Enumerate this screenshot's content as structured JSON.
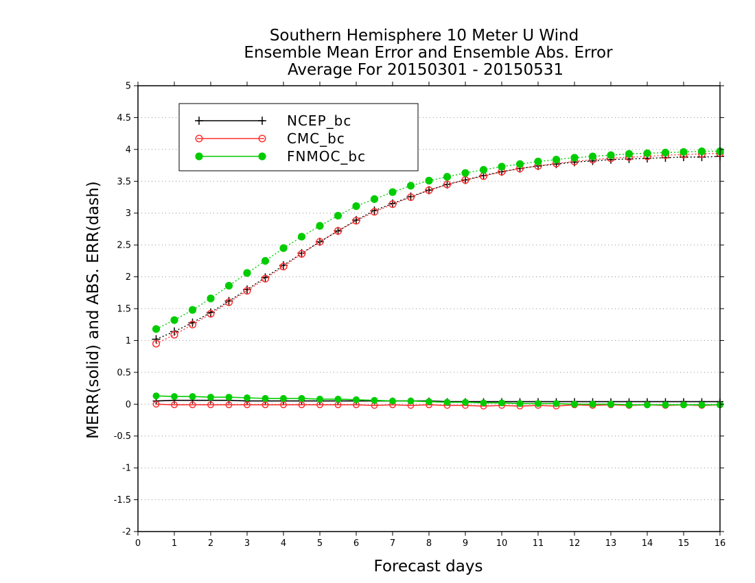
{
  "chart_data": {
    "type": "line",
    "title": [
      "Southern Hemisphere 10 Meter U Wind",
      "Ensemble Mean Error and Ensemble Abs. Error",
      "Average For 20150301 - 20150531"
    ],
    "xlabel": "Forecast days",
    "ylabel": "MERR(solid) and ABS. ERR(dash)",
    "xlim": [
      0,
      16
    ],
    "ylim": [
      -2,
      5
    ],
    "xticks": [
      0,
      1,
      2,
      3,
      4,
      5,
      6,
      7,
      8,
      9,
      10,
      11,
      12,
      13,
      14,
      15,
      16
    ],
    "yticks": [
      -2,
      -1.5,
      -1,
      -0.5,
      0,
      0.5,
      1,
      1.5,
      2,
      2.5,
      3,
      3.5,
      4,
      4.5,
      5
    ],
    "ytick_labels": [
      "-2",
      "-1.5",
      "-1",
      "-0.5",
      "0",
      "0.5",
      "1",
      "1.5",
      "2",
      "2.5",
      "3",
      "3.5",
      "4",
      "4.5",
      "5"
    ],
    "grid": "horizontal dotted",
    "legend_position": "top-left",
    "x": [
      0.5,
      1,
      1.5,
      2,
      2.5,
      3,
      3.5,
      4,
      4.5,
      5,
      5.5,
      6,
      6.5,
      7,
      7.5,
      8,
      8.5,
      9,
      9.5,
      10,
      10.5,
      11,
      11.5,
      12,
      12.5,
      13,
      13.5,
      14,
      14.5,
      15,
      15.5,
      16
    ],
    "series": [
      {
        "name": "NCEP_bc",
        "color": "#000000",
        "marker": "plus",
        "mean_error": [
          0.05,
          0.06,
          0.06,
          0.06,
          0.06,
          0.05,
          0.05,
          0.05,
          0.05,
          0.05,
          0.05,
          0.05,
          0.05,
          0.05,
          0.05,
          0.05,
          0.04,
          0.04,
          0.04,
          0.04,
          0.04,
          0.04,
          0.04,
          0.04,
          0.04,
          0.04,
          0.04,
          0.04,
          0.04,
          0.04,
          0.04,
          0.04
        ],
        "abs_error": [
          1.02,
          1.14,
          1.28,
          1.44,
          1.62,
          1.8,
          1.99,
          2.18,
          2.37,
          2.55,
          2.72,
          2.89,
          3.04,
          3.15,
          3.26,
          3.36,
          3.45,
          3.52,
          3.59,
          3.65,
          3.7,
          3.74,
          3.77,
          3.8,
          3.82,
          3.84,
          3.85,
          3.86,
          3.87,
          3.88,
          3.88,
          3.89
        ]
      },
      {
        "name": "CMC_bc",
        "color": "#ff3030",
        "marker": "open-circle",
        "mean_error": [
          0.0,
          -0.01,
          -0.01,
          -0.01,
          -0.01,
          -0.01,
          -0.01,
          -0.01,
          -0.01,
          -0.01,
          -0.01,
          -0.01,
          -0.02,
          -0.01,
          -0.02,
          -0.01,
          -0.02,
          -0.02,
          -0.03,
          -0.02,
          -0.03,
          -0.02,
          -0.03,
          -0.01,
          -0.02,
          -0.01,
          -0.02,
          -0.01,
          -0.02,
          -0.01,
          -0.02,
          -0.01
        ],
        "abs_error": [
          0.95,
          1.09,
          1.25,
          1.42,
          1.6,
          1.78,
          1.97,
          2.16,
          2.36,
          2.55,
          2.72,
          2.88,
          3.02,
          3.14,
          3.25,
          3.36,
          3.45,
          3.52,
          3.58,
          3.65,
          3.7,
          3.74,
          3.78,
          3.81,
          3.84,
          3.86,
          3.88,
          3.89,
          3.91,
          3.92,
          3.93,
          3.94
        ]
      },
      {
        "name": "FNMOC_bc",
        "color": "#00cc00",
        "marker": "filled-circle",
        "mean_error": [
          0.13,
          0.12,
          0.12,
          0.11,
          0.11,
          0.1,
          0.09,
          0.09,
          0.09,
          0.08,
          0.08,
          0.07,
          0.06,
          0.05,
          0.05,
          0.04,
          0.03,
          0.03,
          0.02,
          0.02,
          0.01,
          0.01,
          0.01,
          0.0,
          0.0,
          0.0,
          -0.01,
          -0.01,
          -0.01,
          -0.01,
          -0.01,
          -0.01
        ],
        "abs_error": [
          1.18,
          1.32,
          1.48,
          1.66,
          1.86,
          2.06,
          2.25,
          2.45,
          2.63,
          2.8,
          2.96,
          3.11,
          3.22,
          3.33,
          3.43,
          3.51,
          3.57,
          3.63,
          3.68,
          3.73,
          3.77,
          3.81,
          3.84,
          3.87,
          3.89,
          3.91,
          3.93,
          3.94,
          3.95,
          3.96,
          3.97,
          3.97
        ]
      }
    ]
  }
}
